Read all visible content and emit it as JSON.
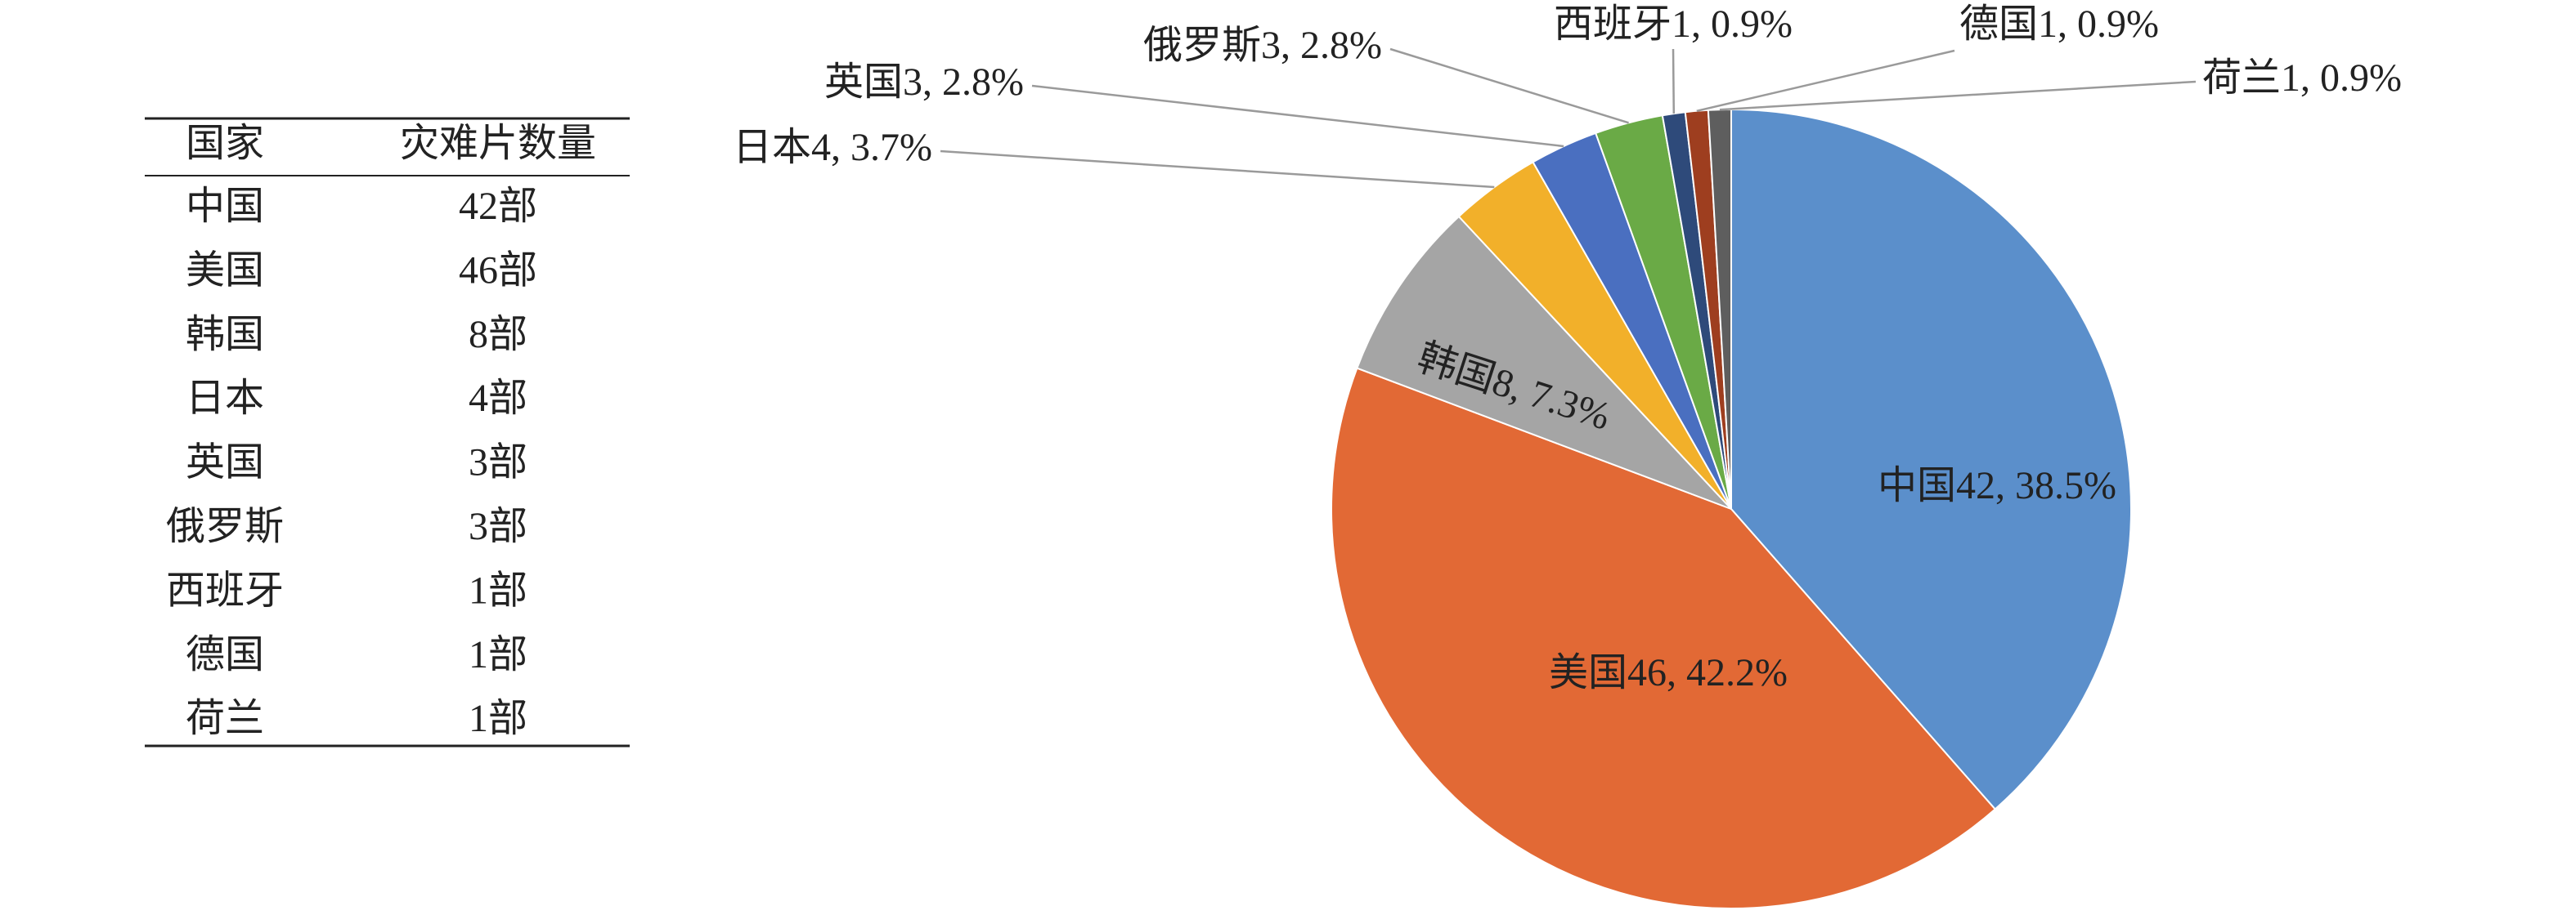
{
  "table": {
    "header": [
      "国家",
      "灾难片数量"
    ],
    "rows": [
      [
        "中国",
        "42部"
      ],
      [
        "美国",
        "46部"
      ],
      [
        "韩国",
        "8部"
      ],
      [
        "日本",
        "4部"
      ],
      [
        "英国",
        "3部"
      ],
      [
        "俄罗斯",
        "3部"
      ],
      [
        "西班牙",
        "1部"
      ],
      [
        "德国",
        "1部"
      ],
      [
        "荷兰",
        "1部"
      ]
    ]
  },
  "chart_data": {
    "type": "pie",
    "categories": [
      "中国",
      "美国",
      "韩国",
      "日本",
      "英国",
      "俄罗斯",
      "西班牙",
      "德国",
      "荷兰"
    ],
    "values": [
      42,
      46,
      8,
      4,
      3,
      3,
      1,
      1,
      1
    ],
    "value_labels": [
      "中国42, 38.5%",
      "美国46, 42.2%",
      "韩国8, 7.3%",
      "日本4, 3.7%",
      "英国3, 2.8%",
      "俄罗斯3, 2.8%",
      "西班牙1, 0.9%",
      "德国1, 0.9%",
      "荷兰1, 0.9%"
    ],
    "colors": [
      "#5b8fcb",
      "#e26935",
      "#a5a5a5",
      "#f2b02a",
      "#4a6fc0",
      "#6aaa46",
      "#2e4a7a",
      "#9e3e1f",
      "#5e5e5e"
    ]
  }
}
